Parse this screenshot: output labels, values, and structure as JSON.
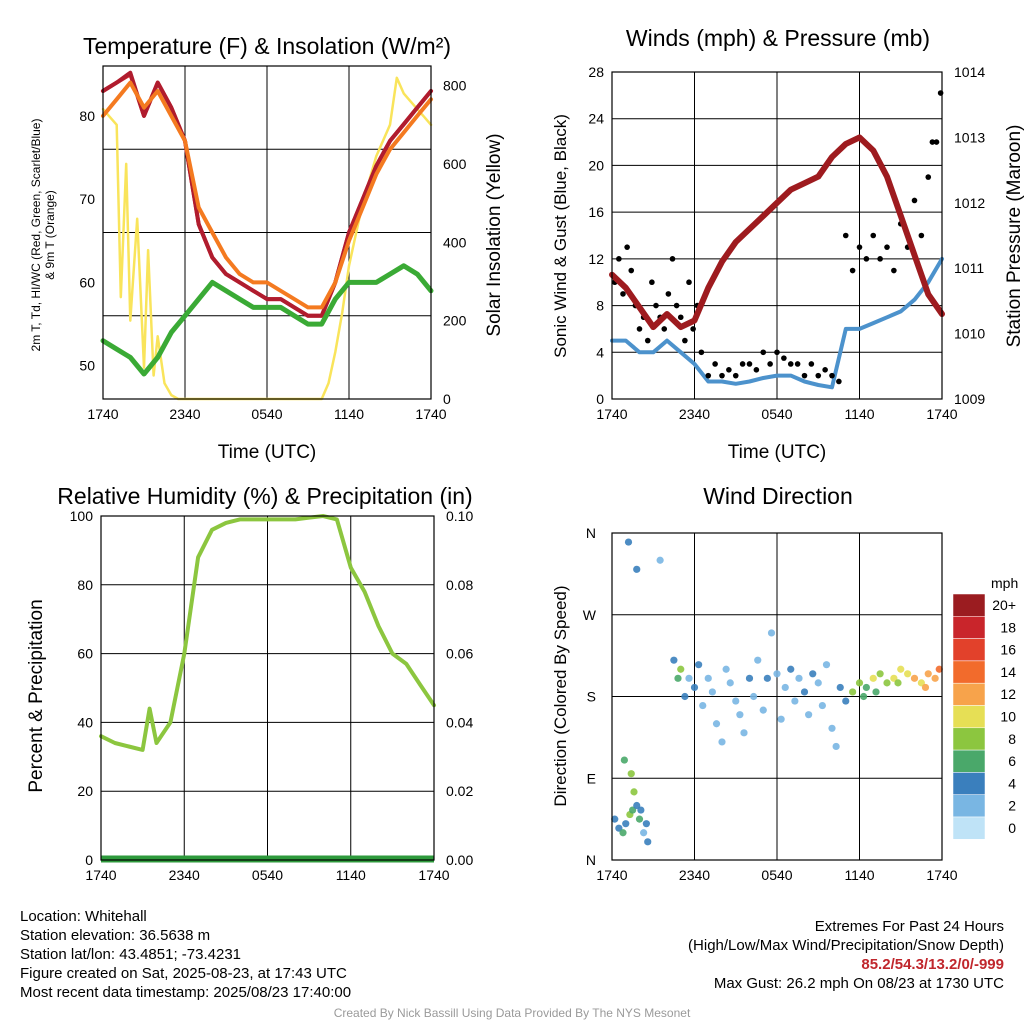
{
  "colors": {
    "temp": "#cc2127",
    "dewpoint": "#3aaa35",
    "hiwc": "#b01c2e",
    "temp9m": "#f47a20",
    "insolation": "#f9e45b",
    "wind": "#4c92cc",
    "gust": "#000000",
    "pressure": "#9e1b1f",
    "rh": "#8cc63f",
    "precip": "#2e9a3c"
  },
  "charts": {
    "temperature": {
      "title": "Temperature (F) & Insolation (W/m²)",
      "ylabel_line1": "2m T, Td, HI/WC (Red, Green, Scarlet/Blue)",
      "ylabel_line2": "& 9m T (Orange)",
      "y2label": "Solar Insolation (Yellow)",
      "xlabel": "Time (UTC)",
      "y_ticks": [
        "50",
        "60",
        "70",
        "80"
      ],
      "y2_ticks": [
        "0",
        "200",
        "400",
        "600",
        "800"
      ]
    },
    "winds": {
      "title": "Winds (mph) & Pressure (mb)",
      "ylabel": "Sonic Wind & Gust (Blue, Black)",
      "y2label": "Station Pressure (Maroon)",
      "xlabel": "Time (UTC)",
      "y_ticks": [
        "0",
        "4",
        "8",
        "12",
        "16",
        "20",
        "24",
        "28"
      ],
      "y2_ticks": [
        "1009",
        "1010",
        "1011",
        "1012",
        "1013",
        "1014"
      ]
    },
    "rh": {
      "title": "Relative Humidity (%) & Precipitation (in)",
      "ylabel": "Percent & Precipitation",
      "y_ticks": [
        "0",
        "20",
        "40",
        "60",
        "80",
        "100"
      ],
      "y2_ticks": [
        "0.00",
        "0.02",
        "0.04",
        "0.06",
        "0.08",
        "0.10"
      ]
    },
    "direction": {
      "title": "Wind Direction",
      "ylabel": "Direction (Colored By Speed)",
      "y_ticks": [
        "N",
        "E",
        "S",
        "W",
        "N"
      ],
      "legend_title": "mph",
      "legend_labels": [
        "20+",
        "18",
        "16",
        "14",
        "12",
        "10",
        "8",
        "6",
        "4",
        "2",
        "0"
      ],
      "legend_colors": [
        "#9b1c20",
        "#c9252b",
        "#e2412b",
        "#f26b2c",
        "#f7a34b",
        "#e6df55",
        "#8cc63f",
        "#4aa86a",
        "#3a7fbd",
        "#79b6e3",
        "#bfe3f7"
      ]
    }
  },
  "x_ticks": [
    "1740",
    "2340",
    "0540",
    "1140",
    "1740"
  ],
  "info": {
    "location": "Location: Whitehall",
    "elevation": "Station elevation: 36.5638 m",
    "latlon": "Station lat/lon: 43.4851; -73.4231",
    "created": "Figure created on Sat, 2025-08-23, at 17:43 UTC",
    "recent": "Most recent data timestamp: 2025/08/23 17:40:00"
  },
  "extremes": {
    "title": "Extremes For Past 24 Hours",
    "subtitle": "(High/Low/Max Wind/Precipitation/Snow Depth)",
    "values": "85.2/54.3/13.2/0/-999",
    "gust": "Max Gust: 26.2 mph On 08/23 at 1730 UTC"
  },
  "credit": "Created By Nick Bassill Using Data Provided By The NYS Mesonet",
  "chart_data": [
    {
      "type": "line",
      "x_hours": [
        0,
        1,
        2,
        3,
        4,
        5,
        6,
        7,
        8,
        9,
        10,
        11,
        12,
        13,
        14,
        15,
        16,
        17,
        18,
        19,
        20,
        21,
        22,
        23,
        24
      ],
      "series": [
        {
          "key": "temp",
          "values": [
            83,
            84,
            85,
            80,
            84,
            81,
            77,
            67,
            63,
            61,
            60,
            59,
            58,
            58,
            57,
            56,
            56,
            60,
            66,
            70,
            74,
            77,
            79,
            81,
            83
          ]
        },
        {
          "key": "hiwc",
          "values": [
            83,
            84,
            85.2,
            80,
            84,
            81,
            77,
            67,
            63,
            61,
            60,
            59,
            58,
            58,
            57,
            56,
            56,
            60,
            66,
            70,
            74,
            77,
            79,
            81,
            83
          ]
        },
        {
          "key": "temp9m",
          "values": [
            80,
            82,
            84,
            81,
            83,
            80,
            77,
            69,
            66,
            63,
            61,
            60,
            60,
            59,
            58,
            57,
            57,
            60,
            65,
            69,
            73,
            76,
            78,
            80,
            82
          ]
        },
        {
          "key": "dewpoint",
          "values": [
            53,
            52,
            51,
            49,
            51,
            54,
            56,
            58,
            60,
            59,
            58,
            57,
            57,
            57,
            56,
            55,
            55,
            58,
            60,
            60,
            60,
            61,
            62,
            61,
            59
          ]
        }
      ],
      "insolation": {
        "x": [
          0,
          0.5,
          1,
          1.3,
          1.7,
          2,
          2.5,
          3,
          3.3,
          3.7,
          4,
          4.5,
          5,
          5.5,
          6,
          7,
          8,
          9,
          10,
          11,
          12,
          13,
          14,
          15,
          16,
          16.5,
          17,
          17.5,
          18,
          18.5,
          19,
          19.5,
          20,
          20.5,
          21,
          21.5,
          22,
          22.5,
          23,
          23.5,
          24
        ],
        "values": [
          740,
          720,
          700,
          260,
          600,
          200,
          460,
          80,
          380,
          60,
          160,
          40,
          10,
          0,
          0,
          0,
          0,
          0,
          0,
          0,
          0,
          0,
          0,
          0,
          0,
          40,
          120,
          220,
          340,
          420,
          500,
          560,
          620,
          660,
          700,
          820,
          780,
          760,
          740,
          720,
          700
        ]
      },
      "ylim": [
        46,
        86
      ],
      "y2lim": [
        0,
        850
      ]
    },
    {
      "type": "line",
      "x_hours": [
        0,
        1,
        2,
        3,
        4,
        5,
        6,
        7,
        8,
        9,
        10,
        11,
        12,
        13,
        14,
        15,
        16,
        17,
        18,
        19,
        20,
        21,
        22,
        23,
        24
      ],
      "series": [
        {
          "key": "wind",
          "values": [
            5,
            5,
            4,
            4,
            5,
            4,
            3,
            1.5,
            1.5,
            1.3,
            1.5,
            1.8,
            2,
            2,
            1.5,
            1.2,
            1,
            6,
            6,
            6.5,
            7,
            7.5,
            8.5,
            10,
            12
          ]
        },
        {
          "key": "pressure",
          "values": [
            1010.9,
            1010.7,
            1010.4,
            1010.1,
            1010.3,
            1010.1,
            1010.2,
            1010.7,
            1011.1,
            1011.4,
            1011.6,
            1011.8,
            1012.0,
            1012.2,
            1012.3,
            1012.4,
            1012.7,
            1012.9,
            1013.0,
            1012.8,
            1012.4,
            1011.8,
            1011.2,
            1010.6,
            1010.3
          ]
        }
      ],
      "gust_x": [
        0.2,
        0.5,
        0.8,
        1.1,
        1.4,
        1.7,
        2.0,
        2.3,
        2.6,
        2.9,
        3.2,
        3.5,
        3.8,
        4.1,
        4.4,
        4.7,
        5.0,
        5.3,
        5.6,
        5.9,
        6.2,
        6.5,
        7.0,
        7.5,
        8.0,
        8.5,
        9.0,
        9.5,
        10.0,
        10.5,
        11.0,
        11.5,
        12.0,
        12.5,
        13.0,
        13.5,
        14.0,
        14.5,
        15.0,
        15.5,
        16.0,
        16.5,
        17.0,
        17.5,
        18.0,
        18.5,
        19.0,
        19.5,
        20.0,
        20.5,
        21.0,
        21.5,
        22.0,
        22.5,
        23.0,
        23.3,
        23.6,
        23.9
      ],
      "gust_values": [
        10,
        12,
        9,
        13,
        11,
        8,
        6,
        7,
        5,
        10,
        8,
        7,
        6,
        9,
        12,
        8,
        7,
        5,
        10,
        6,
        8,
        4,
        2,
        3,
        2,
        2.5,
        2,
        3,
        3,
        2.5,
        4,
        3,
        4,
        3.5,
        3,
        3,
        2,
        3,
        2,
        2.5,
        2,
        1.5,
        14,
        11,
        13,
        12,
        14,
        12,
        13,
        11,
        15,
        13,
        17,
        14,
        19,
        22,
        22,
        26.2
      ],
      "ylim": [
        0,
        28
      ],
      "y2lim": [
        1009,
        1014
      ]
    },
    {
      "type": "line",
      "x_hours": [
        0,
        1,
        2,
        3,
        3.5,
        4,
        5,
        6,
        7,
        8,
        9,
        10,
        11,
        12,
        13,
        14,
        15,
        16,
        17,
        18,
        19,
        20,
        21,
        22,
        23,
        24
      ],
      "series": [
        {
          "key": "rh",
          "values": [
            36,
            34,
            33,
            32,
            44,
            34,
            40,
            60,
            88,
            96,
            98,
            99,
            99,
            99,
            99,
            99,
            99.5,
            100,
            99,
            85,
            78,
            68,
            60,
            57,
            51,
            45
          ]
        },
        {
          "key": "precip",
          "values": [
            0,
            0,
            0,
            0,
            0,
            0,
            0,
            0,
            0,
            0,
            0,
            0,
            0,
            0,
            0,
            0,
            0,
            0,
            0,
            0,
            0,
            0,
            0,
            0,
            0,
            0
          ]
        }
      ],
      "ylim": [
        0,
        100
      ],
      "y2lim": [
        0,
        0.1
      ]
    },
    {
      "type": "scatter",
      "points": [
        [
          0.2,
          45,
          3
        ],
        [
          0.5,
          35,
          4
        ],
        [
          0.8,
          30,
          6
        ],
        [
          1.0,
          40,
          3
        ],
        [
          1.3,
          50,
          7
        ],
        [
          1.5,
          55,
          6
        ],
        [
          1.8,
          60,
          4
        ],
        [
          2.0,
          45,
          5
        ],
        [
          2.3,
          30,
          2
        ],
        [
          2.6,
          20,
          4
        ],
        [
          0.9,
          110,
          6
        ],
        [
          1.4,
          95,
          7
        ],
        [
          1.6,
          75,
          8
        ],
        [
          2.1,
          55,
          4
        ],
        [
          2.5,
          40,
          3
        ],
        [
          1.2,
          350,
          4
        ],
        [
          1.8,
          320,
          3
        ],
        [
          3.5,
          330,
          2
        ],
        [
          4.5,
          220,
          4
        ],
        [
          4.8,
          200,
          5
        ],
        [
          5.0,
          210,
          7
        ],
        [
          5.3,
          180,
          3
        ],
        [
          5.6,
          200,
          2
        ],
        [
          6.0,
          190,
          3
        ],
        [
          6.3,
          215,
          4
        ],
        [
          6.6,
          170,
          2
        ],
        [
          7.0,
          200,
          1
        ],
        [
          7.3,
          185,
          2
        ],
        [
          7.6,
          150,
          1
        ],
        [
          8.0,
          130,
          2
        ],
        [
          8.3,
          210,
          1
        ],
        [
          8.6,
          195,
          2
        ],
        [
          9.0,
          175,
          1
        ],
        [
          9.3,
          160,
          1
        ],
        [
          9.6,
          140,
          2
        ],
        [
          10.0,
          200,
          3
        ],
        [
          10.3,
          180,
          2
        ],
        [
          10.6,
          220,
          1
        ],
        [
          11.0,
          165,
          2
        ],
        [
          11.3,
          200,
          3
        ],
        [
          11.6,
          250,
          1
        ],
        [
          12.0,
          205,
          2
        ],
        [
          12.3,
          155,
          1
        ],
        [
          12.6,
          190,
          2
        ],
        [
          13.0,
          210,
          3
        ],
        [
          13.3,
          175,
          1
        ],
        [
          13.6,
          200,
          2
        ],
        [
          14.0,
          185,
          3
        ],
        [
          14.3,
          160,
          2
        ],
        [
          14.6,
          205,
          3
        ],
        [
          15.0,
          195,
          2
        ],
        [
          15.3,
          170,
          1
        ],
        [
          15.6,
          215,
          2
        ],
        [
          16.0,
          145,
          1
        ],
        [
          16.3,
          125,
          2
        ],
        [
          16.6,
          190,
          3
        ],
        [
          17.0,
          175,
          4
        ],
        [
          17.5,
          185,
          8
        ],
        [
          18.0,
          195,
          7
        ],
        [
          18.5,
          190,
          6
        ],
        [
          19.0,
          200,
          9
        ],
        [
          19.5,
          205,
          8
        ],
        [
          20.0,
          195,
          7
        ],
        [
          20.5,
          200,
          10
        ],
        [
          21.0,
          210,
          9
        ],
        [
          21.5,
          205,
          10
        ],
        [
          22.0,
          200,
          11
        ],
        [
          22.5,
          195,
          10
        ],
        [
          23.0,
          205,
          12
        ],
        [
          23.5,
          200,
          12
        ],
        [
          23.8,
          210,
          13
        ],
        [
          18.3,
          180,
          6
        ],
        [
          19.2,
          185,
          5
        ],
        [
          20.8,
          195,
          8
        ],
        [
          22.8,
          190,
          11
        ]
      ],
      "ylim": [
        0,
        360
      ]
    }
  ]
}
